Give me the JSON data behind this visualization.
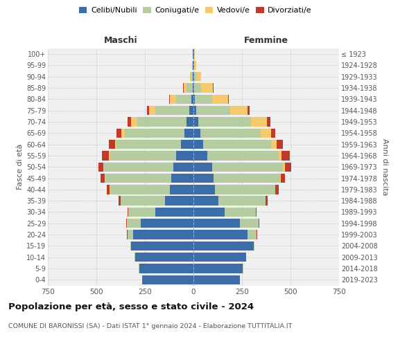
{
  "age_groups": [
    "0-4",
    "5-9",
    "10-14",
    "15-19",
    "20-24",
    "25-29",
    "30-34",
    "35-39",
    "40-44",
    "45-49",
    "50-54",
    "55-59",
    "60-64",
    "65-69",
    "70-74",
    "75-79",
    "80-84",
    "85-89",
    "90-94",
    "95-99",
    "100+"
  ],
  "birth_years": [
    "2019-2023",
    "2014-2018",
    "2009-2013",
    "2004-2008",
    "1999-2003",
    "1994-1998",
    "1989-1993",
    "1984-1988",
    "1979-1983",
    "1974-1978",
    "1969-1973",
    "1964-1968",
    "1959-1963",
    "1954-1958",
    "1949-1953",
    "1944-1948",
    "1939-1943",
    "1934-1938",
    "1929-1933",
    "1924-1928",
    "≤ 1923"
  ],
  "maschi": {
    "celibi": [
      265,
      280,
      300,
      320,
      310,
      270,
      195,
      145,
      120,
      115,
      105,
      90,
      65,
      45,
      35,
      20,
      10,
      5,
      4,
      2,
      2
    ],
    "coniugati": [
      0,
      1,
      2,
      5,
      30,
      70,
      140,
      230,
      310,
      340,
      355,
      340,
      330,
      310,
      255,
      175,
      80,
      30,
      8,
      3,
      2
    ],
    "vedovi": [
      0,
      0,
      0,
      0,
      1,
      2,
      1,
      1,
      2,
      2,
      5,
      5,
      10,
      15,
      30,
      35,
      30,
      15,
      5,
      2,
      1
    ],
    "divorziati": [
      0,
      0,
      0,
      0,
      1,
      3,
      5,
      10,
      15,
      20,
      25,
      35,
      30,
      25,
      18,
      10,
      5,
      2,
      1,
      0,
      0
    ]
  },
  "femmine": {
    "nubili": [
      240,
      255,
      270,
      310,
      280,
      240,
      160,
      130,
      110,
      105,
      95,
      70,
      50,
      35,
      25,
      15,
      8,
      5,
      5,
      2,
      2
    ],
    "coniugate": [
      0,
      1,
      2,
      5,
      45,
      95,
      160,
      240,
      310,
      340,
      365,
      370,
      350,
      310,
      270,
      175,
      90,
      35,
      10,
      3,
      1
    ],
    "vedove": [
      0,
      0,
      0,
      0,
      1,
      1,
      1,
      2,
      3,
      5,
      10,
      15,
      30,
      55,
      85,
      90,
      80,
      60,
      25,
      8,
      3
    ],
    "divorziate": [
      0,
      0,
      0,
      0,
      1,
      3,
      5,
      10,
      15,
      20,
      35,
      40,
      30,
      20,
      15,
      8,
      5,
      3,
      1,
      0,
      0
    ]
  },
  "colors": {
    "celibi_nubili": "#3d6da8",
    "coniugati": "#b5cca0",
    "vedovi": "#f5c96e",
    "divorziati": "#c0392b"
  },
  "title": "Popolazione per età, sesso e stato civile - 2024",
  "subtitle": "COMUNE DI BARONISSI (SA) - Dati ISTAT 1° gennaio 2024 - Elaborazione TUTTITALIA.IT",
  "xlabel_left": "Maschi",
  "xlabel_right": "Femmine",
  "ylabel_left": "Fasce di età",
  "ylabel_right": "Anni di nascita",
  "xlim": 750,
  "bg_color": "#f0f0f0",
  "grid_color": "#cccccc"
}
